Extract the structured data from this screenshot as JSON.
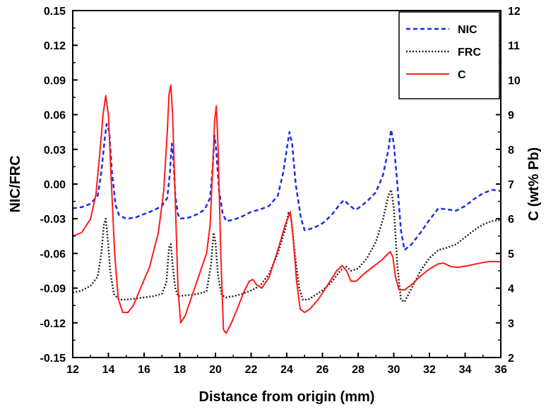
{
  "chart_data": {
    "type": "line",
    "title": "",
    "xlabel": "Distance from origin (mm)",
    "ylabel_left": "NIC/FRC",
    "ylabel_right": "C (wt% Pb)",
    "xlim": [
      12,
      36
    ],
    "ylim_left": [
      -0.15,
      0.15
    ],
    "ylim_right": [
      2,
      12
    ],
    "x_ticks": [
      "12",
      "14",
      "16",
      "18",
      "20",
      "22",
      "24",
      "26",
      "28",
      "30",
      "32",
      "34",
      "36"
    ],
    "y_left_ticks": [
      "-0.15",
      "-0.12",
      "-0.09",
      "-0.06",
      "-0.03",
      "0.00",
      "0.03",
      "0.06",
      "0.09",
      "0.12",
      "0.15"
    ],
    "y_right_ticks": [
      "2",
      "3",
      "4",
      "5",
      "6",
      "7",
      "8",
      "9",
      "10",
      "11",
      "12"
    ],
    "grid": false,
    "legend_position": "top-right",
    "series": [
      {
        "name": "NIC",
        "axis": "left",
        "color": "#1a2ee6",
        "dash": "dashed",
        "points": [
          [
            12,
            -0.021
          ],
          [
            12.5,
            -0.02
          ],
          [
            13,
            -0.017
          ],
          [
            13.4,
            -0.01
          ],
          [
            13.6,
            0.01
          ],
          [
            13.8,
            0.04
          ],
          [
            13.9,
            0.052
          ],
          [
            14.05,
            0.045
          ],
          [
            14.2,
            0.01
          ],
          [
            14.4,
            -0.018
          ],
          [
            14.6,
            -0.027
          ],
          [
            15,
            -0.03
          ],
          [
            15.5,
            -0.029
          ],
          [
            16,
            -0.026
          ],
          [
            16.5,
            -0.023
          ],
          [
            17,
            -0.019
          ],
          [
            17.3,
            -0.012
          ],
          [
            17.45,
            0.01
          ],
          [
            17.55,
            0.035
          ],
          [
            17.65,
            0.02
          ],
          [
            17.75,
            -0.01
          ],
          [
            17.9,
            -0.026
          ],
          [
            18,
            -0.03
          ],
          [
            18.5,
            -0.029
          ],
          [
            19,
            -0.026
          ],
          [
            19.4,
            -0.022
          ],
          [
            19.7,
            -0.012
          ],
          [
            19.85,
            0.015
          ],
          [
            19.95,
            0.042
          ],
          [
            20.05,
            0.028
          ],
          [
            20.2,
            -0.005
          ],
          [
            20.4,
            -0.025
          ],
          [
            20.6,
            -0.032
          ],
          [
            21,
            -0.031
          ],
          [
            21.5,
            -0.028
          ],
          [
            22,
            -0.024
          ],
          [
            22.5,
            -0.022
          ],
          [
            23,
            -0.019
          ],
          [
            23.5,
            -0.01
          ],
          [
            23.8,
            0.01
          ],
          [
            24,
            0.03
          ],
          [
            24.15,
            0.045
          ],
          [
            24.3,
            0.035
          ],
          [
            24.5,
            0.0
          ],
          [
            24.8,
            -0.03
          ],
          [
            25,
            -0.04
          ],
          [
            25.5,
            -0.038
          ],
          [
            26,
            -0.034
          ],
          [
            26.5,
            -0.027
          ],
          [
            27,
            -0.017
          ],
          [
            27.2,
            -0.014
          ],
          [
            27.5,
            -0.018
          ],
          [
            27.8,
            -0.022
          ],
          [
            28,
            -0.021
          ],
          [
            28.5,
            -0.015
          ],
          [
            29,
            -0.007
          ],
          [
            29.4,
            0.008
          ],
          [
            29.7,
            0.03
          ],
          [
            29.85,
            0.047
          ],
          [
            30,
            0.035
          ],
          [
            30.2,
            0.0
          ],
          [
            30.4,
            -0.04
          ],
          [
            30.6,
            -0.057
          ],
          [
            31,
            -0.052
          ],
          [
            31.5,
            -0.042
          ],
          [
            32,
            -0.031
          ],
          [
            32.5,
            -0.021
          ],
          [
            33,
            -0.022
          ],
          [
            33.5,
            -0.023
          ],
          [
            34,
            -0.019
          ],
          [
            34.5,
            -0.013
          ],
          [
            35,
            -0.008
          ],
          [
            35.5,
            -0.005
          ],
          [
            36,
            -0.006
          ]
        ]
      },
      {
        "name": "FRC",
        "axis": "left",
        "color": "#222222",
        "dash": "dotted",
        "points": [
          [
            12,
            -0.094
          ],
          [
            12.5,
            -0.092
          ],
          [
            13,
            -0.088
          ],
          [
            13.4,
            -0.08
          ],
          [
            13.6,
            -0.06
          ],
          [
            13.75,
            -0.035
          ],
          [
            13.85,
            -0.03
          ],
          [
            13.95,
            -0.045
          ],
          [
            14.1,
            -0.075
          ],
          [
            14.3,
            -0.095
          ],
          [
            14.6,
            -0.1
          ],
          [
            15,
            -0.1
          ],
          [
            15.5,
            -0.099
          ],
          [
            16,
            -0.098
          ],
          [
            16.5,
            -0.097
          ],
          [
            17,
            -0.095
          ],
          [
            17.25,
            -0.085
          ],
          [
            17.4,
            -0.055
          ],
          [
            17.5,
            -0.052
          ],
          [
            17.6,
            -0.07
          ],
          [
            17.75,
            -0.09
          ],
          [
            17.9,
            -0.097
          ],
          [
            18.5,
            -0.096
          ],
          [
            19,
            -0.095
          ],
          [
            19.5,
            -0.093
          ],
          [
            19.75,
            -0.07
          ],
          [
            19.9,
            -0.042
          ],
          [
            20,
            -0.05
          ],
          [
            20.15,
            -0.08
          ],
          [
            20.35,
            -0.096
          ],
          [
            20.6,
            -0.098
          ],
          [
            21,
            -0.097
          ],
          [
            21.5,
            -0.095
          ],
          [
            22,
            -0.092
          ],
          [
            22.5,
            -0.088
          ],
          [
            23,
            -0.078
          ],
          [
            23.5,
            -0.06
          ],
          [
            23.9,
            -0.04
          ],
          [
            24.1,
            -0.025
          ],
          [
            24.25,
            -0.03
          ],
          [
            24.45,
            -0.06
          ],
          [
            24.7,
            -0.09
          ],
          [
            24.9,
            -0.1
          ],
          [
            25.2,
            -0.1
          ],
          [
            25.5,
            -0.097
          ],
          [
            26,
            -0.092
          ],
          [
            26.5,
            -0.085
          ],
          [
            27,
            -0.075
          ],
          [
            27.3,
            -0.071
          ],
          [
            27.6,
            -0.075
          ],
          [
            28,
            -0.073
          ],
          [
            28.5,
            -0.064
          ],
          [
            29,
            -0.05
          ],
          [
            29.4,
            -0.03
          ],
          [
            29.7,
            -0.01
          ],
          [
            29.85,
            -0.005
          ],
          [
            30,
            -0.02
          ],
          [
            30.2,
            -0.07
          ],
          [
            30.4,
            -0.1
          ],
          [
            30.6,
            -0.102
          ],
          [
            31,
            -0.09
          ],
          [
            31.5,
            -0.075
          ],
          [
            32,
            -0.064
          ],
          [
            32.5,
            -0.057
          ],
          [
            33,
            -0.055
          ],
          [
            33.5,
            -0.052
          ],
          [
            34,
            -0.046
          ],
          [
            34.5,
            -0.04
          ],
          [
            35,
            -0.035
          ],
          [
            35.5,
            -0.032
          ],
          [
            36,
            -0.031
          ]
        ]
      },
      {
        "name": "C",
        "axis": "right",
        "color": "#ff1a1a",
        "dash": "solid",
        "points": [
          [
            12,
            5.5
          ],
          [
            12.5,
            5.6
          ],
          [
            13,
            6.0
          ],
          [
            13.3,
            6.7
          ],
          [
            13.5,
            7.8
          ],
          [
            13.7,
            9.0
          ],
          [
            13.85,
            9.55
          ],
          [
            14.0,
            9.0
          ],
          [
            14.15,
            7.2
          ],
          [
            14.35,
            5.0
          ],
          [
            14.55,
            3.7
          ],
          [
            14.8,
            3.3
          ],
          [
            15.1,
            3.3
          ],
          [
            15.4,
            3.5
          ],
          [
            15.8,
            4.0
          ],
          [
            16.3,
            4.6
          ],
          [
            16.8,
            5.6
          ],
          [
            17.1,
            6.8
          ],
          [
            17.3,
            8.5
          ],
          [
            17.4,
            9.6
          ],
          [
            17.5,
            9.85
          ],
          [
            17.6,
            9.0
          ],
          [
            17.75,
            6.5
          ],
          [
            17.9,
            4.0
          ],
          [
            18.05,
            3.0
          ],
          [
            18.3,
            3.2
          ],
          [
            18.7,
            3.8
          ],
          [
            19.1,
            4.4
          ],
          [
            19.5,
            5.0
          ],
          [
            19.7,
            5.8
          ],
          [
            19.85,
            7.5
          ],
          [
            19.95,
            8.8
          ],
          [
            20.05,
            9.25
          ],
          [
            20.15,
            8.0
          ],
          [
            20.3,
            5.0
          ],
          [
            20.45,
            2.8
          ],
          [
            20.6,
            2.7
          ],
          [
            20.9,
            3.0
          ],
          [
            21.3,
            3.5
          ],
          [
            21.6,
            3.9
          ],
          [
            21.9,
            4.2
          ],
          [
            22.1,
            4.25
          ],
          [
            22.3,
            4.1
          ],
          [
            22.6,
            4.0
          ],
          [
            23.0,
            4.3
          ],
          [
            23.5,
            5.1
          ],
          [
            23.9,
            5.8
          ],
          [
            24.2,
            6.2
          ],
          [
            24.35,
            5.5
          ],
          [
            24.55,
            4.2
          ],
          [
            24.75,
            3.4
          ],
          [
            25.0,
            3.3
          ],
          [
            25.3,
            3.4
          ],
          [
            25.8,
            3.7
          ],
          [
            26.3,
            4.1
          ],
          [
            26.8,
            4.5
          ],
          [
            27.1,
            4.65
          ],
          [
            27.35,
            4.5
          ],
          [
            27.6,
            4.2
          ],
          [
            27.9,
            4.2
          ],
          [
            28.3,
            4.4
          ],
          [
            28.8,
            4.6
          ],
          [
            29.3,
            4.8
          ],
          [
            29.6,
            4.95
          ],
          [
            29.8,
            5.05
          ],
          [
            29.95,
            4.9
          ],
          [
            30.1,
            4.3
          ],
          [
            30.3,
            3.95
          ],
          [
            30.6,
            3.95
          ],
          [
            31.0,
            4.1
          ],
          [
            31.5,
            4.35
          ],
          [
            32.0,
            4.55
          ],
          [
            32.5,
            4.7
          ],
          [
            32.8,
            4.72
          ],
          [
            33.2,
            4.62
          ],
          [
            33.6,
            4.6
          ],
          [
            34.2,
            4.65
          ],
          [
            34.8,
            4.72
          ],
          [
            35.4,
            4.77
          ],
          [
            36,
            4.76
          ]
        ]
      }
    ]
  }
}
